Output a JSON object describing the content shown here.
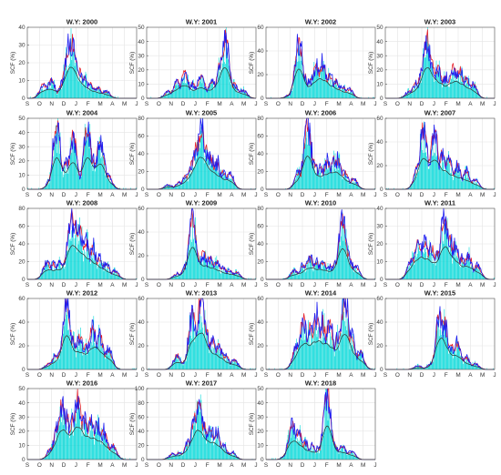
{
  "figure": {
    "ylabel": "SCF (%)",
    "month_ticks": [
      "S",
      "O",
      "N",
      "D",
      "J",
      "F",
      "M",
      "A",
      "M",
      "J"
    ],
    "colors": {
      "bars": "#00d8d8",
      "red_line": "#e8202a",
      "blue_line": "#1c1cf0",
      "black_line": "#303030",
      "grid": "#e4e4e4",
      "axes": "#555555"
    }
  },
  "chart_data": [
    {
      "type": "bar",
      "title": "W.Y: 2000",
      "ylim": [
        0,
        40
      ],
      "yticks": [
        0,
        10,
        20,
        30,
        40
      ],
      "xticks": [
        "S",
        "O",
        "N",
        "D",
        "J",
        "F",
        "M",
        "A",
        "M",
        "J"
      ],
      "peaks": [
        {
          "x": 0.15,
          "v": 8
        },
        {
          "x": 0.22,
          "v": 10
        },
        {
          "x": 0.33,
          "v": 10
        },
        {
          "x": 0.37,
          "v": 25
        },
        {
          "x": 0.39,
          "v": 30
        },
        {
          "x": 0.41,
          "v": 32
        },
        {
          "x": 0.44,
          "v": 22
        },
        {
          "x": 0.48,
          "v": 15
        },
        {
          "x": 0.52,
          "v": 12
        },
        {
          "x": 0.58,
          "v": 8
        },
        {
          "x": 0.65,
          "v": 6
        },
        {
          "x": 0.72,
          "v": 4
        }
      ]
    },
    {
      "type": "bar",
      "title": "W.Y: 2001",
      "ylim": [
        0,
        50
      ],
      "yticks": [
        0,
        10,
        20,
        30,
        40,
        50
      ],
      "xticks": [
        "S",
        "O",
        "N",
        "D",
        "J",
        "F",
        "M",
        "A",
        "M",
        "J"
      ],
      "peaks": [
        {
          "x": 0.2,
          "v": 5
        },
        {
          "x": 0.28,
          "v": 12
        },
        {
          "x": 0.35,
          "v": 18
        },
        {
          "x": 0.42,
          "v": 10
        },
        {
          "x": 0.5,
          "v": 15
        },
        {
          "x": 0.6,
          "v": 12
        },
        {
          "x": 0.68,
          "v": 26
        },
        {
          "x": 0.72,
          "v": 43
        },
        {
          "x": 0.8,
          "v": 10
        },
        {
          "x": 0.88,
          "v": 6
        }
      ]
    },
    {
      "type": "bar",
      "title": "W.Y: 2002",
      "ylim": [
        0,
        60
      ],
      "yticks": [
        0,
        20,
        40,
        60
      ],
      "xticks": [
        "S",
        "O",
        "N",
        "D",
        "J",
        "F",
        "M",
        "A",
        "M",
        "J"
      ],
      "peaks": [
        {
          "x": 0.22,
          "v": 3
        },
        {
          "x": 0.3,
          "v": 50
        },
        {
          "x": 0.34,
          "v": 22
        },
        {
          "x": 0.4,
          "v": 15
        },
        {
          "x": 0.46,
          "v": 28
        },
        {
          "x": 0.52,
          "v": 30
        },
        {
          "x": 0.58,
          "v": 20
        },
        {
          "x": 0.64,
          "v": 15
        },
        {
          "x": 0.7,
          "v": 10
        },
        {
          "x": 0.76,
          "v": 8
        }
      ]
    },
    {
      "type": "bar",
      "title": "W.Y: 2003",
      "ylim": [
        0,
        50
      ],
      "yticks": [
        0,
        10,
        20,
        30,
        40,
        50
      ],
      "xticks": [
        "S",
        "O",
        "N",
        "D",
        "J",
        "F",
        "M",
        "A",
        "M",
        "J"
      ],
      "peaks": [
        {
          "x": 0.22,
          "v": 5
        },
        {
          "x": 0.28,
          "v": 10
        },
        {
          "x": 0.34,
          "v": 20
        },
        {
          "x": 0.38,
          "v": 43
        },
        {
          "x": 0.42,
          "v": 27
        },
        {
          "x": 0.48,
          "v": 22
        },
        {
          "x": 0.55,
          "v": 15
        },
        {
          "x": 0.62,
          "v": 22
        },
        {
          "x": 0.68,
          "v": 20
        },
        {
          "x": 0.74,
          "v": 14
        },
        {
          "x": 0.8,
          "v": 10
        }
      ]
    },
    {
      "type": "bar",
      "title": "W.Y: 2004",
      "ylim": [
        0,
        50
      ],
      "yticks": [
        0,
        10,
        20,
        30,
        40,
        50
      ],
      "xticks": [
        "S",
        "O",
        "N",
        "D",
        "J",
        "F",
        "M",
        "A",
        "M",
        "J"
      ],
      "peaks": [
        {
          "x": 0.22,
          "v": 8
        },
        {
          "x": 0.27,
          "v": 45
        },
        {
          "x": 0.31,
          "v": 14
        },
        {
          "x": 0.36,
          "v": 20
        },
        {
          "x": 0.42,
          "v": 38
        },
        {
          "x": 0.48,
          "v": 10
        },
        {
          "x": 0.55,
          "v": 45
        },
        {
          "x": 0.6,
          "v": 22
        },
        {
          "x": 0.67,
          "v": 36
        },
        {
          "x": 0.74,
          "v": 10
        }
      ]
    },
    {
      "type": "bar",
      "title": "W.Y: 2005",
      "ylim": [
        0,
        80
      ],
      "yticks": [
        0,
        20,
        40,
        60,
        80
      ],
      "xticks": [
        "S",
        "O",
        "N",
        "D",
        "J",
        "F",
        "M",
        "A",
        "M",
        "J"
      ],
      "peaks": [
        {
          "x": 0.2,
          "v": 5
        },
        {
          "x": 0.3,
          "v": 8
        },
        {
          "x": 0.36,
          "v": 15
        },
        {
          "x": 0.42,
          "v": 30
        },
        {
          "x": 0.46,
          "v": 50
        },
        {
          "x": 0.5,
          "v": 70
        },
        {
          "x": 0.54,
          "v": 45
        },
        {
          "x": 0.58,
          "v": 38
        },
        {
          "x": 0.64,
          "v": 30
        },
        {
          "x": 0.7,
          "v": 20
        },
        {
          "x": 0.76,
          "v": 18
        }
      ]
    },
    {
      "type": "bar",
      "title": "W.Y: 2006",
      "ylim": [
        0,
        80
      ],
      "yticks": [
        0,
        20,
        40,
        60,
        80
      ],
      "xticks": [
        "S",
        "O",
        "N",
        "D",
        "J",
        "F",
        "M",
        "A",
        "M",
        "J"
      ],
      "peaks": [
        {
          "x": 0.3,
          "v": 20
        },
        {
          "x": 0.38,
          "v": 76
        },
        {
          "x": 0.44,
          "v": 30
        },
        {
          "x": 0.5,
          "v": 25
        },
        {
          "x": 0.56,
          "v": 32
        },
        {
          "x": 0.62,
          "v": 34
        },
        {
          "x": 0.66,
          "v": 33
        },
        {
          "x": 0.72,
          "v": 20
        },
        {
          "x": 0.8,
          "v": 12
        }
      ]
    },
    {
      "type": "bar",
      "title": "W.Y: 2007",
      "ylim": [
        0,
        60
      ],
      "yticks": [
        0,
        20,
        40,
        60
      ],
      "xticks": [
        "S",
        "O",
        "N",
        "D",
        "J",
        "F",
        "M",
        "A",
        "M",
        "J"
      ],
      "peaks": [
        {
          "x": 0.3,
          "v": 20
        },
        {
          "x": 0.35,
          "v": 53
        },
        {
          "x": 0.4,
          "v": 25
        },
        {
          "x": 0.45,
          "v": 50
        },
        {
          "x": 0.52,
          "v": 30
        },
        {
          "x": 0.58,
          "v": 25
        },
        {
          "x": 0.66,
          "v": 20
        },
        {
          "x": 0.74,
          "v": 15
        },
        {
          "x": 0.82,
          "v": 8
        }
      ]
    },
    {
      "type": "bar",
      "title": "W.Y: 2008",
      "ylim": [
        0,
        80
      ],
      "yticks": [
        0,
        20,
        40,
        60,
        80
      ],
      "xticks": [
        "S",
        "O",
        "N",
        "D",
        "J",
        "F",
        "M",
        "A",
        "M",
        "J"
      ],
      "peaks": [
        {
          "x": 0.18,
          "v": 20
        },
        {
          "x": 0.24,
          "v": 18
        },
        {
          "x": 0.3,
          "v": 20
        },
        {
          "x": 0.36,
          "v": 25
        },
        {
          "x": 0.4,
          "v": 72
        },
        {
          "x": 0.44,
          "v": 58
        },
        {
          "x": 0.48,
          "v": 55
        },
        {
          "x": 0.54,
          "v": 45
        },
        {
          "x": 0.6,
          "v": 35
        },
        {
          "x": 0.66,
          "v": 25
        },
        {
          "x": 0.72,
          "v": 18
        },
        {
          "x": 0.8,
          "v": 10
        }
      ]
    },
    {
      "type": "bar",
      "title": "W.Y: 2009",
      "ylim": [
        0,
        60
      ],
      "yticks": [
        0,
        20,
        40,
        60
      ],
      "xticks": [
        "S",
        "O",
        "N",
        "D",
        "J",
        "F",
        "M",
        "A",
        "M",
        "J"
      ],
      "peaks": [
        {
          "x": 0.28,
          "v": 5
        },
        {
          "x": 0.36,
          "v": 12
        },
        {
          "x": 0.42,
          "v": 55
        },
        {
          "x": 0.46,
          "v": 20
        },
        {
          "x": 0.52,
          "v": 22
        },
        {
          "x": 0.58,
          "v": 18
        },
        {
          "x": 0.64,
          "v": 15
        },
        {
          "x": 0.7,
          "v": 10
        },
        {
          "x": 0.76,
          "v": 8
        },
        {
          "x": 0.82,
          "v": 6
        }
      ]
    },
    {
      "type": "bar",
      "title": "W.Y: 2010",
      "ylim": [
        0,
        80
      ],
      "yticks": [
        0,
        20,
        40,
        60,
        80
      ],
      "xticks": [
        "S",
        "O",
        "N",
        "D",
        "J",
        "F",
        "M",
        "A",
        "M",
        "J"
      ],
      "peaks": [
        {
          "x": 0.26,
          "v": 10
        },
        {
          "x": 0.34,
          "v": 15
        },
        {
          "x": 0.4,
          "v": 25
        },
        {
          "x": 0.46,
          "v": 20
        },
        {
          "x": 0.52,
          "v": 20
        },
        {
          "x": 0.58,
          "v": 15
        },
        {
          "x": 0.64,
          "v": 20
        },
        {
          "x": 0.7,
          "v": 70
        },
        {
          "x": 0.75,
          "v": 30
        },
        {
          "x": 0.82,
          "v": 15
        }
      ]
    },
    {
      "type": "bar",
      "title": "W.Y: 2011",
      "ylim": [
        0,
        40
      ],
      "yticks": [
        0,
        10,
        20,
        30,
        40
      ],
      "xticks": [
        "S",
        "O",
        "N",
        "D",
        "J",
        "F",
        "M",
        "A",
        "M",
        "J"
      ],
      "peaks": [
        {
          "x": 0.24,
          "v": 12
        },
        {
          "x": 0.3,
          "v": 22
        },
        {
          "x": 0.36,
          "v": 22
        },
        {
          "x": 0.42,
          "v": 18
        },
        {
          "x": 0.48,
          "v": 15
        },
        {
          "x": 0.54,
          "v": 36
        },
        {
          "x": 0.58,
          "v": 25
        },
        {
          "x": 0.64,
          "v": 20
        },
        {
          "x": 0.7,
          "v": 12
        },
        {
          "x": 0.76,
          "v": 14
        },
        {
          "x": 0.84,
          "v": 8
        }
      ]
    },
    {
      "type": "bar",
      "title": "W.Y: 2012",
      "ylim": [
        0,
        60
      ],
      "yticks": [
        0,
        20,
        40,
        60
      ],
      "xticks": [
        "S",
        "O",
        "N",
        "D",
        "J",
        "F",
        "M",
        "A",
        "M",
        "J"
      ],
      "peaks": [
        {
          "x": 0.2,
          "v": 5
        },
        {
          "x": 0.26,
          "v": 12
        },
        {
          "x": 0.32,
          "v": 20
        },
        {
          "x": 0.36,
          "v": 58
        },
        {
          "x": 0.42,
          "v": 25
        },
        {
          "x": 0.48,
          "v": 28
        },
        {
          "x": 0.54,
          "v": 20
        },
        {
          "x": 0.6,
          "v": 36
        },
        {
          "x": 0.66,
          "v": 30
        },
        {
          "x": 0.74,
          "v": 18
        }
      ]
    },
    {
      "type": "bar",
      "title": "W.Y: 2013",
      "ylim": [
        0,
        60
      ],
      "yticks": [
        0,
        20,
        40,
        60
      ],
      "xticks": [
        "S",
        "O",
        "N",
        "D",
        "J",
        "F",
        "M",
        "A",
        "M",
        "J"
      ],
      "peaks": [
        {
          "x": 0.28,
          "v": 12
        },
        {
          "x": 0.36,
          "v": 8
        },
        {
          "x": 0.42,
          "v": 48
        },
        {
          "x": 0.46,
          "v": 30
        },
        {
          "x": 0.5,
          "v": 62
        },
        {
          "x": 0.54,
          "v": 35
        },
        {
          "x": 0.6,
          "v": 25
        },
        {
          "x": 0.66,
          "v": 20
        },
        {
          "x": 0.72,
          "v": 12
        },
        {
          "x": 0.8,
          "v": 8
        }
      ]
    },
    {
      "type": "bar",
      "title": "W.Y: 2014",
      "ylim": [
        0,
        60
      ],
      "yticks": [
        0,
        20,
        40,
        60
      ],
      "xticks": [
        "S",
        "O",
        "N",
        "D",
        "J",
        "F",
        "M",
        "A",
        "M",
        "J"
      ],
      "peaks": [
        {
          "x": 0.28,
          "v": 20
        },
        {
          "x": 0.34,
          "v": 42
        },
        {
          "x": 0.4,
          "v": 35
        },
        {
          "x": 0.46,
          "v": 45
        },
        {
          "x": 0.52,
          "v": 40
        },
        {
          "x": 0.58,
          "v": 38
        },
        {
          "x": 0.66,
          "v": 30
        },
        {
          "x": 0.72,
          "v": 60
        },
        {
          "x": 0.78,
          "v": 30
        },
        {
          "x": 0.86,
          "v": 15
        }
      ]
    },
    {
      "type": "bar",
      "title": "W.Y: 2015",
      "ylim": [
        0,
        60
      ],
      "yticks": [
        0,
        20,
        40,
        60
      ],
      "xticks": [
        "S",
        "O",
        "N",
        "D",
        "J",
        "F",
        "M",
        "A",
        "M",
        "J"
      ],
      "peaks": [
        {
          "x": 0.3,
          "v": 3
        },
        {
          "x": 0.42,
          "v": 5
        },
        {
          "x": 0.5,
          "v": 50
        },
        {
          "x": 0.54,
          "v": 40
        },
        {
          "x": 0.6,
          "v": 20
        },
        {
          "x": 0.66,
          "v": 22
        },
        {
          "x": 0.74,
          "v": 10
        },
        {
          "x": 0.82,
          "v": 5
        }
      ]
    },
    {
      "type": "bar",
      "title": "W.Y: 2016",
      "ylim": [
        0,
        50
      ],
      "yticks": [
        0,
        10,
        20,
        30,
        40,
        50
      ],
      "xticks": [
        "S",
        "O",
        "N",
        "D",
        "J",
        "F",
        "M",
        "A",
        "M",
        "J"
      ],
      "peaks": [
        {
          "x": 0.22,
          "v": 8
        },
        {
          "x": 0.28,
          "v": 25
        },
        {
          "x": 0.32,
          "v": 40
        },
        {
          "x": 0.36,
          "v": 30
        },
        {
          "x": 0.42,
          "v": 30
        },
        {
          "x": 0.46,
          "v": 45
        },
        {
          "x": 0.52,
          "v": 30
        },
        {
          "x": 0.58,
          "v": 28
        },
        {
          "x": 0.64,
          "v": 25
        },
        {
          "x": 0.7,
          "v": 20
        },
        {
          "x": 0.78,
          "v": 10
        }
      ]
    },
    {
      "type": "bar",
      "title": "W.Y: 2017",
      "ylim": [
        0,
        100
      ],
      "yticks": [
        0,
        20,
        40,
        60,
        80,
        100
      ],
      "xticks": [
        "S",
        "O",
        "N",
        "D",
        "J",
        "F",
        "M",
        "A",
        "M",
        "J"
      ],
      "peaks": [
        {
          "x": 0.24,
          "v": 8
        },
        {
          "x": 0.3,
          "v": 10
        },
        {
          "x": 0.38,
          "v": 25
        },
        {
          "x": 0.44,
          "v": 62
        },
        {
          "x": 0.48,
          "v": 78
        },
        {
          "x": 0.52,
          "v": 50
        },
        {
          "x": 0.58,
          "v": 45
        },
        {
          "x": 0.64,
          "v": 40
        },
        {
          "x": 0.7,
          "v": 22
        },
        {
          "x": 0.78,
          "v": 10
        }
      ]
    },
    {
      "type": "bar",
      "title": "W.Y: 2018",
      "ylim": [
        0,
        50
      ],
      "yticks": [
        0,
        10,
        20,
        30,
        40,
        50
      ],
      "xticks": [
        "S",
        "O",
        "N",
        "D",
        "J",
        "F",
        "M",
        "A",
        "M",
        "J"
      ],
      "peaks": [
        {
          "x": 0.2,
          "v": 5
        },
        {
          "x": 0.24,
          "v": 25
        },
        {
          "x": 0.3,
          "v": 20
        },
        {
          "x": 0.36,
          "v": 12
        },
        {
          "x": 0.42,
          "v": 10
        },
        {
          "x": 0.48,
          "v": 8
        },
        {
          "x": 0.56,
          "v": 48
        },
        {
          "x": 0.62,
          "v": 12
        },
        {
          "x": 0.7,
          "v": 10
        },
        {
          "x": 0.78,
          "v": 6
        }
      ]
    }
  ]
}
